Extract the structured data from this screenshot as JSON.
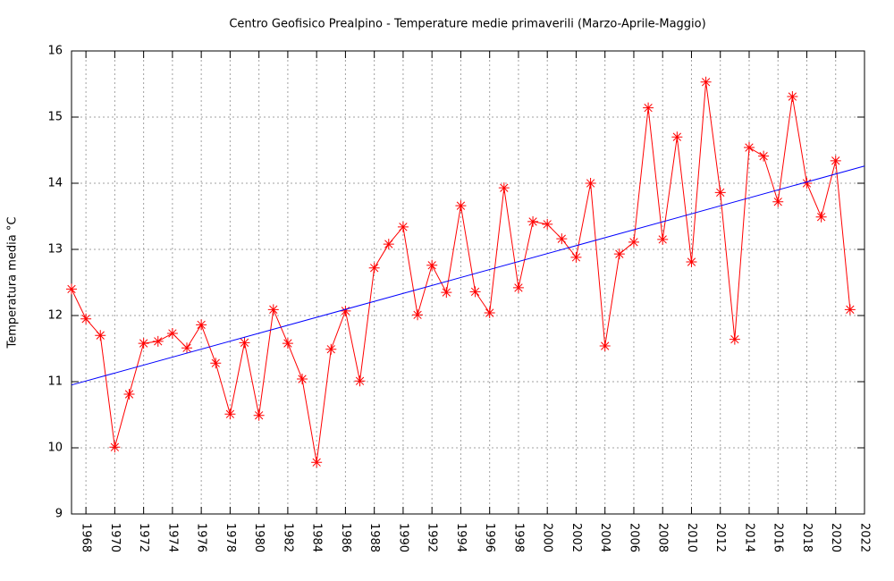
{
  "chart_data": {
    "type": "line",
    "title": "Centro Geofisico Prealpino - Temperature medie primaverili (Marzo-Aprile-Maggio)",
    "y_label": "Temperatura media °C",
    "x": [
      1967,
      1968,
      1969,
      1970,
      1971,
      1972,
      1973,
      1974,
      1975,
      1976,
      1977,
      1978,
      1979,
      1980,
      1981,
      1982,
      1983,
      1984,
      1985,
      1986,
      1987,
      1988,
      1989,
      1990,
      1991,
      1992,
      1993,
      1994,
      1995,
      1996,
      1997,
      1998,
      1999,
      2000,
      2001,
      2002,
      2003,
      2004,
      2005,
      2006,
      2007,
      2008,
      2009,
      2010,
      2011,
      2012,
      2013,
      2014,
      2015,
      2016,
      2017,
      2018,
      2019,
      2020,
      2021
    ],
    "series": [
      {
        "color": "#ff0000",
        "values": [
          12.4,
          11.95,
          11.7,
          10.01,
          10.81,
          11.58,
          11.61,
          11.73,
          11.51,
          11.86,
          11.28,
          10.51,
          11.59,
          10.49,
          12.09,
          11.58,
          11.04,
          9.78,
          11.49,
          12.07,
          11.01,
          12.72,
          13.08,
          13.34,
          12.01,
          12.76,
          12.35,
          13.66,
          12.36,
          12.04,
          13.93,
          12.42,
          13.42,
          13.38,
          13.16,
          12.88,
          14.0,
          11.54,
          12.93,
          13.11,
          15.14,
          13.15,
          14.7,
          12.81,
          15.53,
          13.86,
          11.64,
          14.54,
          14.41,
          13.72,
          15.31,
          14.0,
          13.49,
          14.34,
          12.09
        ]
      },
      {
        "color": "#0000ff",
        "x": [
          1967,
          2022
        ],
        "values": [
          10.95,
          14.26
        ]
      }
    ],
    "xlim": [
      1967,
      2022
    ],
    "xticks": [
      1968,
      1970,
      1972,
      1974,
      1976,
      1978,
      1980,
      1982,
      1984,
      1986,
      1988,
      1990,
      1992,
      1994,
      1996,
      1998,
      2000,
      2002,
      2004,
      2006,
      2008,
      2010,
      2012,
      2014,
      2016,
      2018,
      2020,
      2022
    ],
    "ylim": [
      9,
      16
    ],
    "yticks": [
      9,
      10,
      11,
      12,
      13,
      14,
      15,
      16
    ],
    "grid": true
  }
}
